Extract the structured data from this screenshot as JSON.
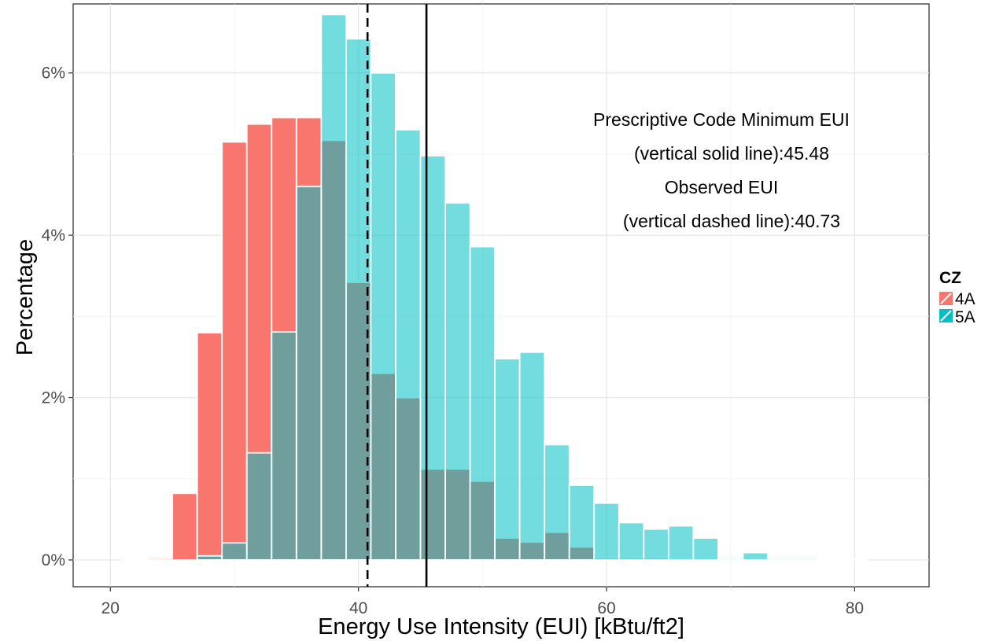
{
  "chart_data": {
    "type": "bar",
    "subtype": "overlapping-histogram",
    "xlabel": "Energy Use Intensity (EUI) [kBtu/ft2]",
    "ylabel": "Percentage",
    "xlim": [
      17,
      86
    ],
    "ylim": [
      -0.33,
      6.85
    ],
    "x_ticks": [
      20,
      40,
      60,
      80
    ],
    "y_ticks": [
      0,
      2,
      4,
      6
    ],
    "y_tick_labels": [
      "0%",
      "2%",
      "4%",
      "6%"
    ],
    "grid": true,
    "bin_width": 2,
    "legend": {
      "title": "CZ",
      "placement": "right",
      "entries": [
        {
          "label": "4A",
          "color": "#F8766D"
        },
        {
          "label": "5A",
          "color": "#00BFC4"
        }
      ]
    },
    "series": [
      {
        "name": "4A",
        "color": "#F8766D",
        "x": [
          22,
          24,
          26,
          28,
          30,
          32,
          34,
          36,
          38,
          40,
          42,
          44,
          46,
          48,
          50,
          52,
          54,
          56,
          58,
          60,
          62,
          64,
          66
        ],
        "values": [
          0.01,
          0.02,
          0.82,
          2.8,
          5.15,
          5.37,
          5.45,
          5.45,
          5.17,
          3.42,
          2.3,
          2.0,
          1.12,
          1.12,
          0.97,
          0.27,
          0.22,
          0.34,
          0.16,
          0.02,
          0.02,
          0.02,
          0.01
        ]
      },
      {
        "name": "5A",
        "color": "#00BFC4",
        "x": [
          22,
          24,
          26,
          28,
          30,
          32,
          34,
          36,
          38,
          40,
          42,
          44,
          46,
          48,
          50,
          52,
          54,
          56,
          58,
          60,
          62,
          64,
          66,
          68,
          70,
          72,
          74,
          76,
          78,
          80
        ],
        "values": [
          0,
          0,
          0,
          0.05,
          0.21,
          1.32,
          2.81,
          4.6,
          6.72,
          6.42,
          6.0,
          5.3,
          4.98,
          4.4,
          3.86,
          2.48,
          2.56,
          1.42,
          0.92,
          0.7,
          0.46,
          0.38,
          0.42,
          0.27,
          0.02,
          0.09,
          0.02,
          0.02,
          0.01,
          0.01
        ]
      }
    ],
    "reference_lines": [
      {
        "name": "Prescriptive Code Minimum EUI",
        "x": 45.48,
        "style": "solid"
      },
      {
        "name": "Observed EUI",
        "x": 40.73,
        "style": "dashed"
      }
    ],
    "annotations": [
      "Prescriptive Code Minimum EUI",
      "(vertical solid line):45.48",
      "Observed EUI",
      "(vertical dashed line):40.73"
    ]
  }
}
